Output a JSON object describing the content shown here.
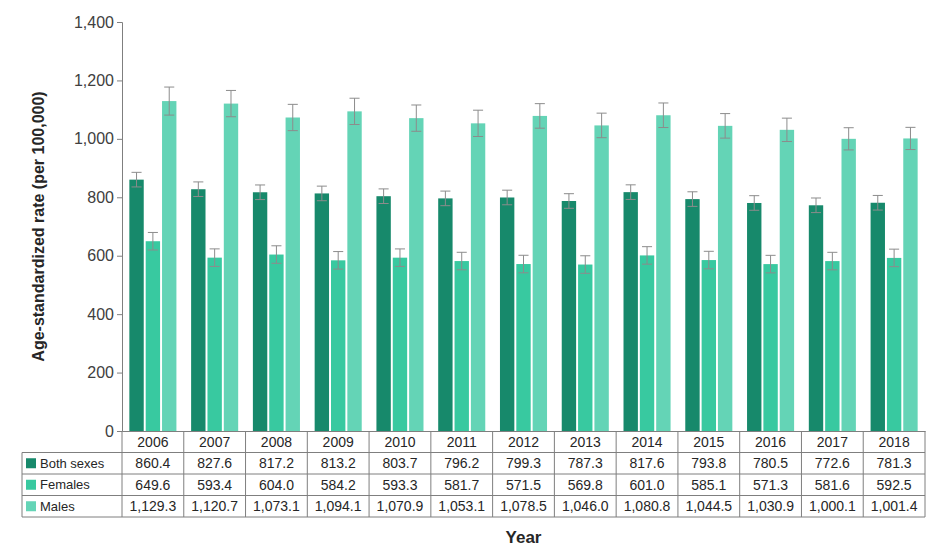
{
  "chart_data": {
    "type": "bar",
    "x_label": "Year",
    "y_label": "Age-standardized rate (per 100,000)",
    "categories": [
      "2006",
      "2007",
      "2008",
      "2009",
      "2010",
      "2011",
      "2012",
      "2013",
      "2014",
      "2015",
      "2016",
      "2017",
      "2018"
    ],
    "series": [
      {
        "name": "Both sexes",
        "color": "#17896b",
        "values": [
          860.4,
          827.6,
          817.2,
          813.2,
          803.7,
          796.2,
          799.3,
          787.3,
          817.6,
          793.8,
          780.5,
          772.6,
          781.3
        ],
        "value_labels": [
          "860.4",
          "827.6",
          "817.2",
          "813.2",
          "803.7",
          "796.2",
          "799.3",
          "787.3",
          "817.6",
          "793.8",
          "780.5",
          "772.6",
          "781.3"
        ],
        "errors": [
          25,
          25,
          25,
          25,
          25,
          25,
          25,
          25,
          25,
          25,
          25,
          25,
          25
        ]
      },
      {
        "name": "Females",
        "color": "#38c9a0",
        "values": [
          649.6,
          593.4,
          604.0,
          584.2,
          593.3,
          581.7,
          571.5,
          569.8,
          601.0,
          585.1,
          571.3,
          581.6,
          592.5
        ],
        "value_labels": [
          "649.6",
          "593.4",
          "604.0",
          "584.2",
          "593.3",
          "581.7",
          "571.5",
          "569.8",
          "601.0",
          "585.1",
          "571.3",
          "581.6",
          "592.5"
        ],
        "errors": [
          30,
          30,
          30,
          30,
          30,
          30,
          30,
          30,
          30,
          30,
          30,
          30,
          30
        ]
      },
      {
        "name": "Males",
        "color": "#64d4b6",
        "values": [
          1129.3,
          1120.7,
          1073.1,
          1094.1,
          1070.9,
          1053.1,
          1078.5,
          1046.0,
          1080.8,
          1044.5,
          1030.9,
          1000.1,
          1001.4
        ],
        "value_labels": [
          "1,129.3",
          "1,120.7",
          "1,073.1",
          "1,094.1",
          "1,070.9",
          "1,053.1",
          "1,078.5",
          "1,046.0",
          "1,080.8",
          "1,044.5",
          "1,030.9",
          "1,000.1",
          "1,001.4"
        ],
        "errors": [
          48,
          45,
          45,
          45,
          45,
          45,
          42,
          42,
          42,
          42,
          40,
          38,
          38
        ]
      }
    ],
    "ylim": [
      0,
      1400
    ],
    "yticks": [
      0,
      200,
      400,
      600,
      800,
      {
        "value": 1000,
        "label": "1,000"
      },
      {
        "value": 1200,
        "label": "1,200"
      },
      {
        "value": 1400,
        "label": "1,400"
      }
    ],
    "grid": false,
    "data_labels": true
  }
}
